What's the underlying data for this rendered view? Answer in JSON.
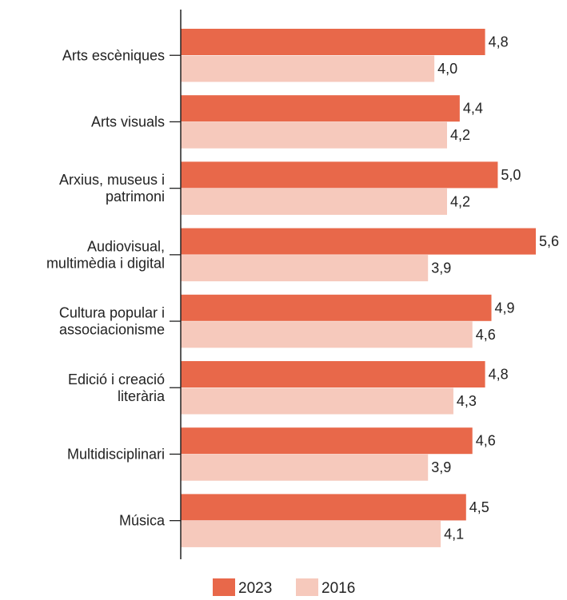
{
  "chart_data": {
    "type": "bar",
    "orientation": "horizontal",
    "categories": [
      [
        "Arts escèniques"
      ],
      [
        "Arts visuals"
      ],
      [
        "Arxius, museus i",
        "patrimoni"
      ],
      [
        "Audiovisual,",
        "multimèdia i digital"
      ],
      [
        "Cultura popular i",
        "associacionisme"
      ],
      [
        "Edició i creació",
        "literària"
      ],
      [
        "Multidisciplinari"
      ],
      [
        "Música"
      ]
    ],
    "series": [
      {
        "name": "2023",
        "color": "#e8684a",
        "values": [
          4.8,
          4.4,
          5.0,
          5.6,
          4.9,
          4.8,
          4.6,
          4.5
        ],
        "labels": [
          "4,8",
          "4,4",
          "5,0",
          "5,6",
          "4,9",
          "4,8",
          "4,6",
          "4,5"
        ]
      },
      {
        "name": "2016",
        "color": "#f6c9bc",
        "values": [
          4.0,
          4.2,
          4.2,
          3.9,
          4.6,
          4.3,
          3.9,
          4.1
        ],
        "labels": [
          "4,0",
          "4,2",
          "4,2",
          "3,9",
          "4,6",
          "4,3",
          "3,9",
          "4,1"
        ]
      }
    ],
    "xlim": [
      0,
      5.6
    ],
    "grid": false,
    "legend_position": "bottom-center"
  }
}
